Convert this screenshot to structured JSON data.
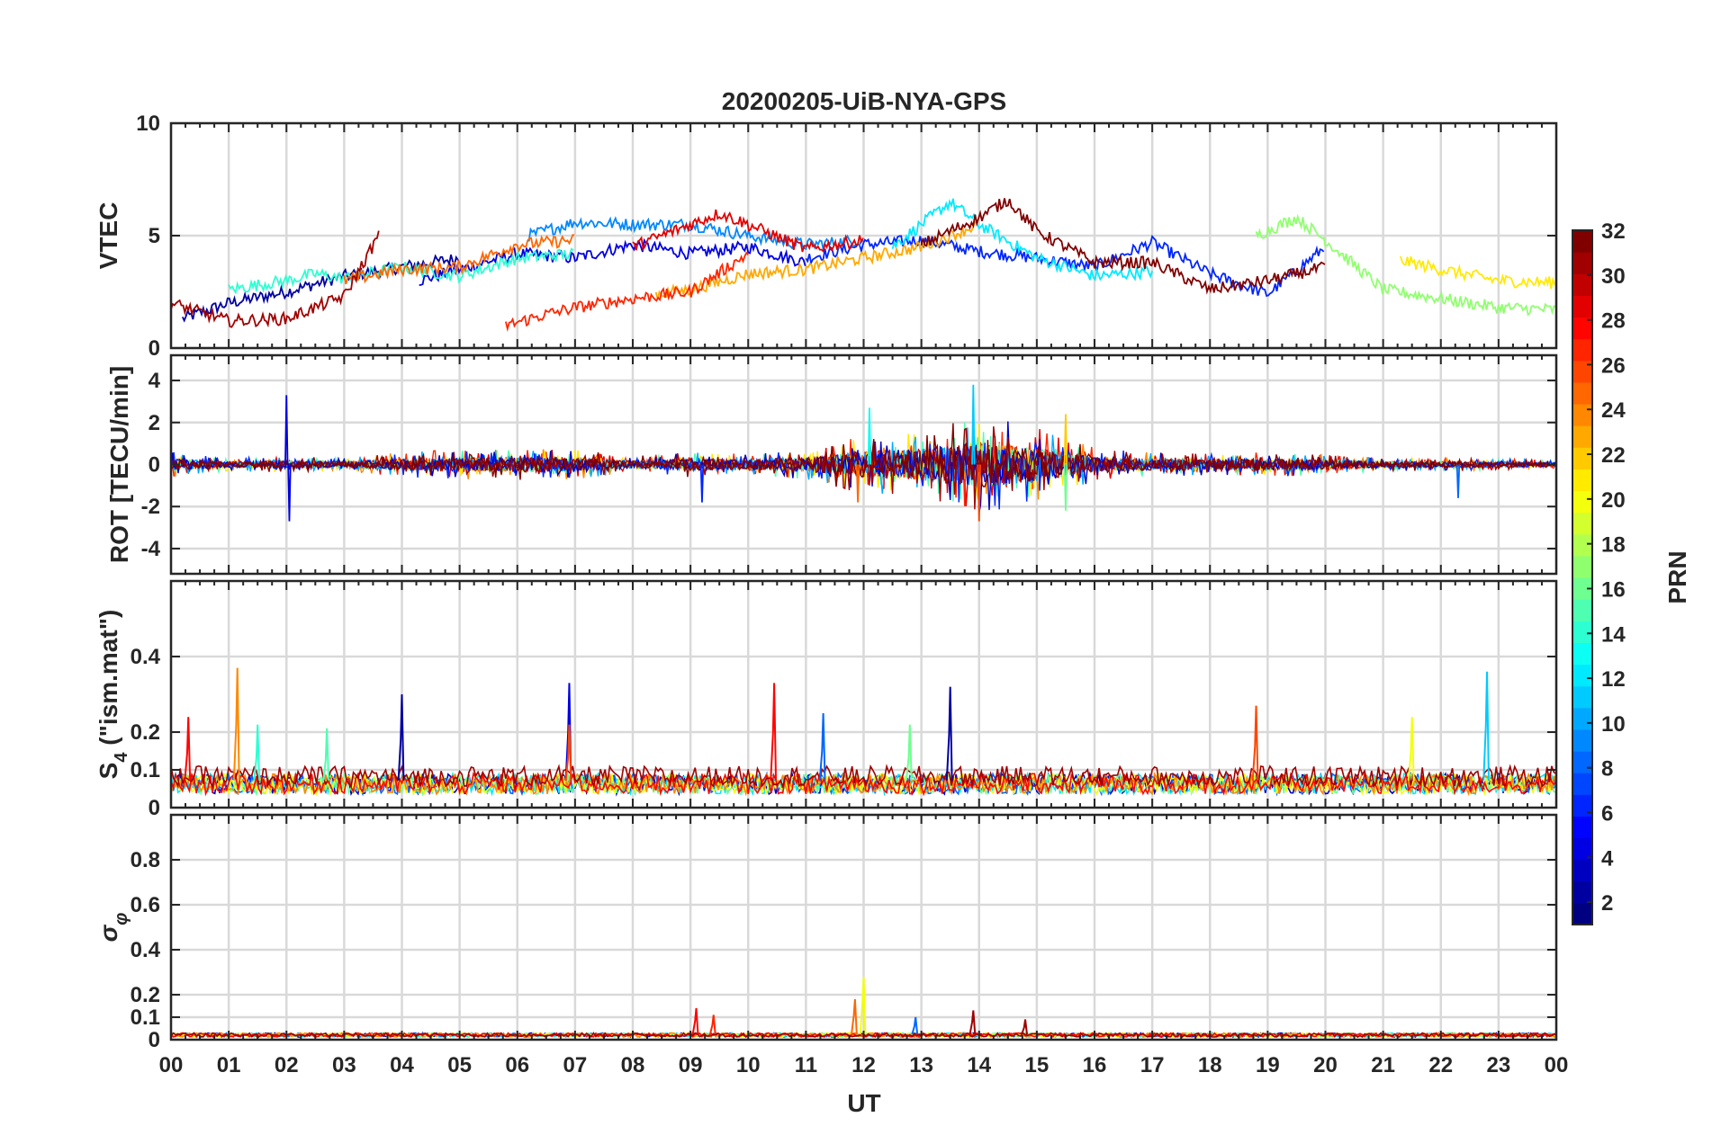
{
  "figure": {
    "title": "20200205-UiB-NYA-GPS",
    "xlabel": "UT",
    "colorbar_label": "PRN"
  },
  "chart_data": [
    {
      "type": "line",
      "panel": "vtec",
      "ylabel": "VTEC",
      "xlim": [
        0,
        24
      ],
      "ylim": [
        0,
        10
      ],
      "yticks": [
        0,
        5,
        10
      ],
      "xticklabels": [
        "00",
        "01",
        "02",
        "03",
        "04",
        "05",
        "06",
        "07",
        "08",
        "09",
        "10",
        "11",
        "12",
        "13",
        "14",
        "15",
        "16",
        "17",
        "18",
        "19",
        "20",
        "21",
        "22",
        "23",
        "00"
      ],
      "grid": true,
      "series": [
        {
          "prn": 2,
          "x": [
            0.2,
            1.0,
            2.0,
            3.0,
            4.0,
            5.0
          ],
          "y": [
            1.3,
            2.0,
            2.5,
            3.2,
            3.6,
            4.0
          ]
        },
        {
          "prn": 4,
          "x": [
            4.3,
            5.0,
            6.0,
            7.0,
            8.0,
            9.0,
            10.0,
            11.0
          ],
          "y": [
            3.0,
            3.5,
            4.2,
            4.0,
            4.6,
            4.2,
            4.5,
            3.8
          ]
        },
        {
          "prn": 6,
          "x": [
            11.0,
            12.0,
            13.0,
            14.0,
            15.0,
            16.0,
            17.0,
            18.0,
            19.0,
            20.0
          ],
          "y": [
            4.0,
            4.6,
            4.8,
            4.3,
            4.0,
            3.6,
            4.7,
            3.3,
            2.4,
            4.5
          ]
        },
        {
          "prn": 9,
          "x": [
            6.2,
            7.0,
            8.0,
            9.0,
            10.0,
            11.0,
            12.0
          ],
          "y": [
            5.0,
            5.6,
            5.5,
            5.5,
            5.0,
            4.6,
            4.8
          ]
        },
        {
          "prn": 12,
          "x": [
            12.5,
            13.0,
            13.5,
            14.0,
            15.0,
            16.0,
            17.0
          ],
          "y": [
            4.5,
            5.5,
            6.5,
            5.5,
            4.0,
            3.2,
            3.4
          ]
        },
        {
          "prn": 14,
          "x": [
            1.0,
            2.0,
            2.5,
            3.0,
            4.0,
            5.0,
            6.0,
            7.0
          ],
          "y": [
            2.6,
            3.0,
            3.3,
            3.1,
            3.6,
            3.2,
            4.0,
            4.2
          ]
        },
        {
          "prn": 17,
          "x": [
            18.8,
            19.5,
            20.0,
            21.0,
            22.0,
            23.0,
            24.0
          ],
          "y": [
            5.0,
            5.8,
            4.8,
            2.6,
            2.2,
            1.8,
            1.7
          ]
        },
        {
          "prn": 21,
          "x": [
            21.3,
            22.0,
            23.0,
            24.0
          ],
          "y": [
            3.9,
            3.5,
            3.0,
            2.9
          ]
        },
        {
          "prn": 23,
          "x": [
            8.4,
            9.0,
            10.0,
            11.0,
            12.0,
            13.0,
            14.0
          ],
          "y": [
            2.4,
            2.6,
            3.3,
            3.5,
            4.0,
            4.5,
            5.5
          ]
        },
        {
          "prn": 25,
          "x": [
            3.0,
            4.0,
            5.0,
            6.0,
            7.0
          ],
          "y": [
            3.0,
            3.5,
            3.6,
            4.6,
            4.8
          ]
        },
        {
          "prn": 27,
          "x": [
            5.8,
            6.5,
            7.0,
            8.0,
            9.0,
            10.0
          ],
          "y": [
            1.0,
            1.5,
            1.8,
            2.2,
            2.5,
            4.2
          ]
        },
        {
          "prn": 29,
          "x": [
            8.0,
            9.0,
            9.5,
            10.0,
            11.0,
            12.0
          ],
          "y": [
            4.5,
            5.5,
            6.0,
            5.5,
            4.4,
            4.8
          ]
        },
        {
          "prn": 31,
          "x": [
            0.0,
            0.5,
            1.0,
            2.0,
            3.0,
            3.6
          ],
          "y": [
            2.0,
            1.6,
            1.2,
            1.3,
            2.3,
            5.0
          ]
        },
        {
          "prn": 32,
          "x": [
            13.0,
            14.0,
            14.5,
            15.0,
            16.0,
            17.0,
            18.0,
            19.0,
            20.0
          ],
          "y": [
            4.6,
            5.8,
            6.6,
            5.2,
            3.8,
            3.8,
            2.6,
            3.0,
            3.6
          ]
        }
      ]
    },
    {
      "type": "line",
      "panel": "rot",
      "ylabel": "ROT [TECU/min]",
      "xlim": [
        0,
        24
      ],
      "ylim": [
        -5.2,
        5.2
      ],
      "yticks": [
        -4,
        -2,
        0,
        2,
        4
      ],
      "grid": true,
      "envelope": {
        "x": [
          0,
          1,
          2,
          3,
          4,
          5,
          6,
          7,
          8,
          9,
          10,
          11,
          12,
          13,
          14,
          15,
          16,
          17,
          18,
          19,
          20,
          21,
          22,
          23,
          24
        ],
        "amplitude": [
          0.6,
          0.3,
          0.4,
          0.3,
          0.6,
          0.7,
          0.8,
          0.7,
          0.4,
          0.6,
          0.5,
          0.7,
          1.4,
          1.6,
          2.4,
          1.8,
          0.8,
          0.6,
          0.5,
          0.6,
          0.5,
          0.3,
          0.3,
          0.3,
          0.2
        ]
      },
      "spikes": [
        {
          "x": 2.0,
          "y": 3.3
        },
        {
          "x": 2.05,
          "y": -2.7
        },
        {
          "x": 13.9,
          "y": 3.8
        },
        {
          "x": 14.0,
          "y": -2.7
        },
        {
          "x": 12.1,
          "y": 2.7
        },
        {
          "x": 15.5,
          "y": -2.2
        },
        {
          "x": 9.2,
          "y": -1.8
        },
        {
          "x": 22.3,
          "y": -1.6
        },
        {
          "x": 15.5,
          "y": 2.4
        },
        {
          "x": 11.9,
          "y": -1.8
        }
      ]
    },
    {
      "type": "line",
      "panel": "s4",
      "ylabel": "S4 (\"ism.mat\")",
      "xlim": [
        0,
        24
      ],
      "ylim": [
        0,
        0.6
      ],
      "yticks": [
        0,
        0.1,
        0.2,
        0.4
      ],
      "grid": true,
      "baseline": 0.06,
      "spikes": [
        {
          "x": 1.15,
          "y": 0.37,
          "prn": 24
        },
        {
          "x": 0.3,
          "y": 0.24,
          "prn": 28
        },
        {
          "x": 4.0,
          "y": 0.3,
          "prn": 2
        },
        {
          "x": 6.9,
          "y": 0.33,
          "prn": 4
        },
        {
          "x": 6.9,
          "y": 0.22,
          "prn": 26
        },
        {
          "x": 10.45,
          "y": 0.33,
          "prn": 28
        },
        {
          "x": 13.5,
          "y": 0.32,
          "prn": 2
        },
        {
          "x": 18.8,
          "y": 0.27,
          "prn": 26
        },
        {
          "x": 22.8,
          "y": 0.36,
          "prn": 11
        },
        {
          "x": 21.5,
          "y": 0.24,
          "prn": 20
        },
        {
          "x": 2.7,
          "y": 0.21,
          "prn": 15
        },
        {
          "x": 1.5,
          "y": 0.22,
          "prn": 14
        },
        {
          "x": 11.3,
          "y": 0.25,
          "prn": 8
        },
        {
          "x": 12.8,
          "y": 0.22,
          "prn": 16
        }
      ]
    },
    {
      "type": "line",
      "panel": "sigma_phi",
      "ylabel": "σφ",
      "xlim": [
        0,
        24
      ],
      "ylim": [
        0,
        1.0
      ],
      "yticks": [
        0,
        0.1,
        0.2,
        0.4,
        0.6,
        0.8
      ],
      "grid": true,
      "baseline": 0.02,
      "spikes": [
        {
          "x": 12.0,
          "y": 0.28,
          "prn": 20
        },
        {
          "x": 11.85,
          "y": 0.18,
          "prn": 25
        },
        {
          "x": 9.1,
          "y": 0.14,
          "prn": 28
        },
        {
          "x": 13.9,
          "y": 0.13,
          "prn": 31
        },
        {
          "x": 9.4,
          "y": 0.11,
          "prn": 27
        },
        {
          "x": 14.8,
          "y": 0.09,
          "prn": 31
        },
        {
          "x": 12.9,
          "y": 0.1,
          "prn": 8
        }
      ]
    }
  ],
  "colorbar": {
    "min": 1,
    "max": 32,
    "ticks": [
      2,
      4,
      6,
      8,
      10,
      12,
      14,
      16,
      18,
      20,
      22,
      24,
      26,
      28,
      30,
      32
    ],
    "colormap": "jet"
  }
}
